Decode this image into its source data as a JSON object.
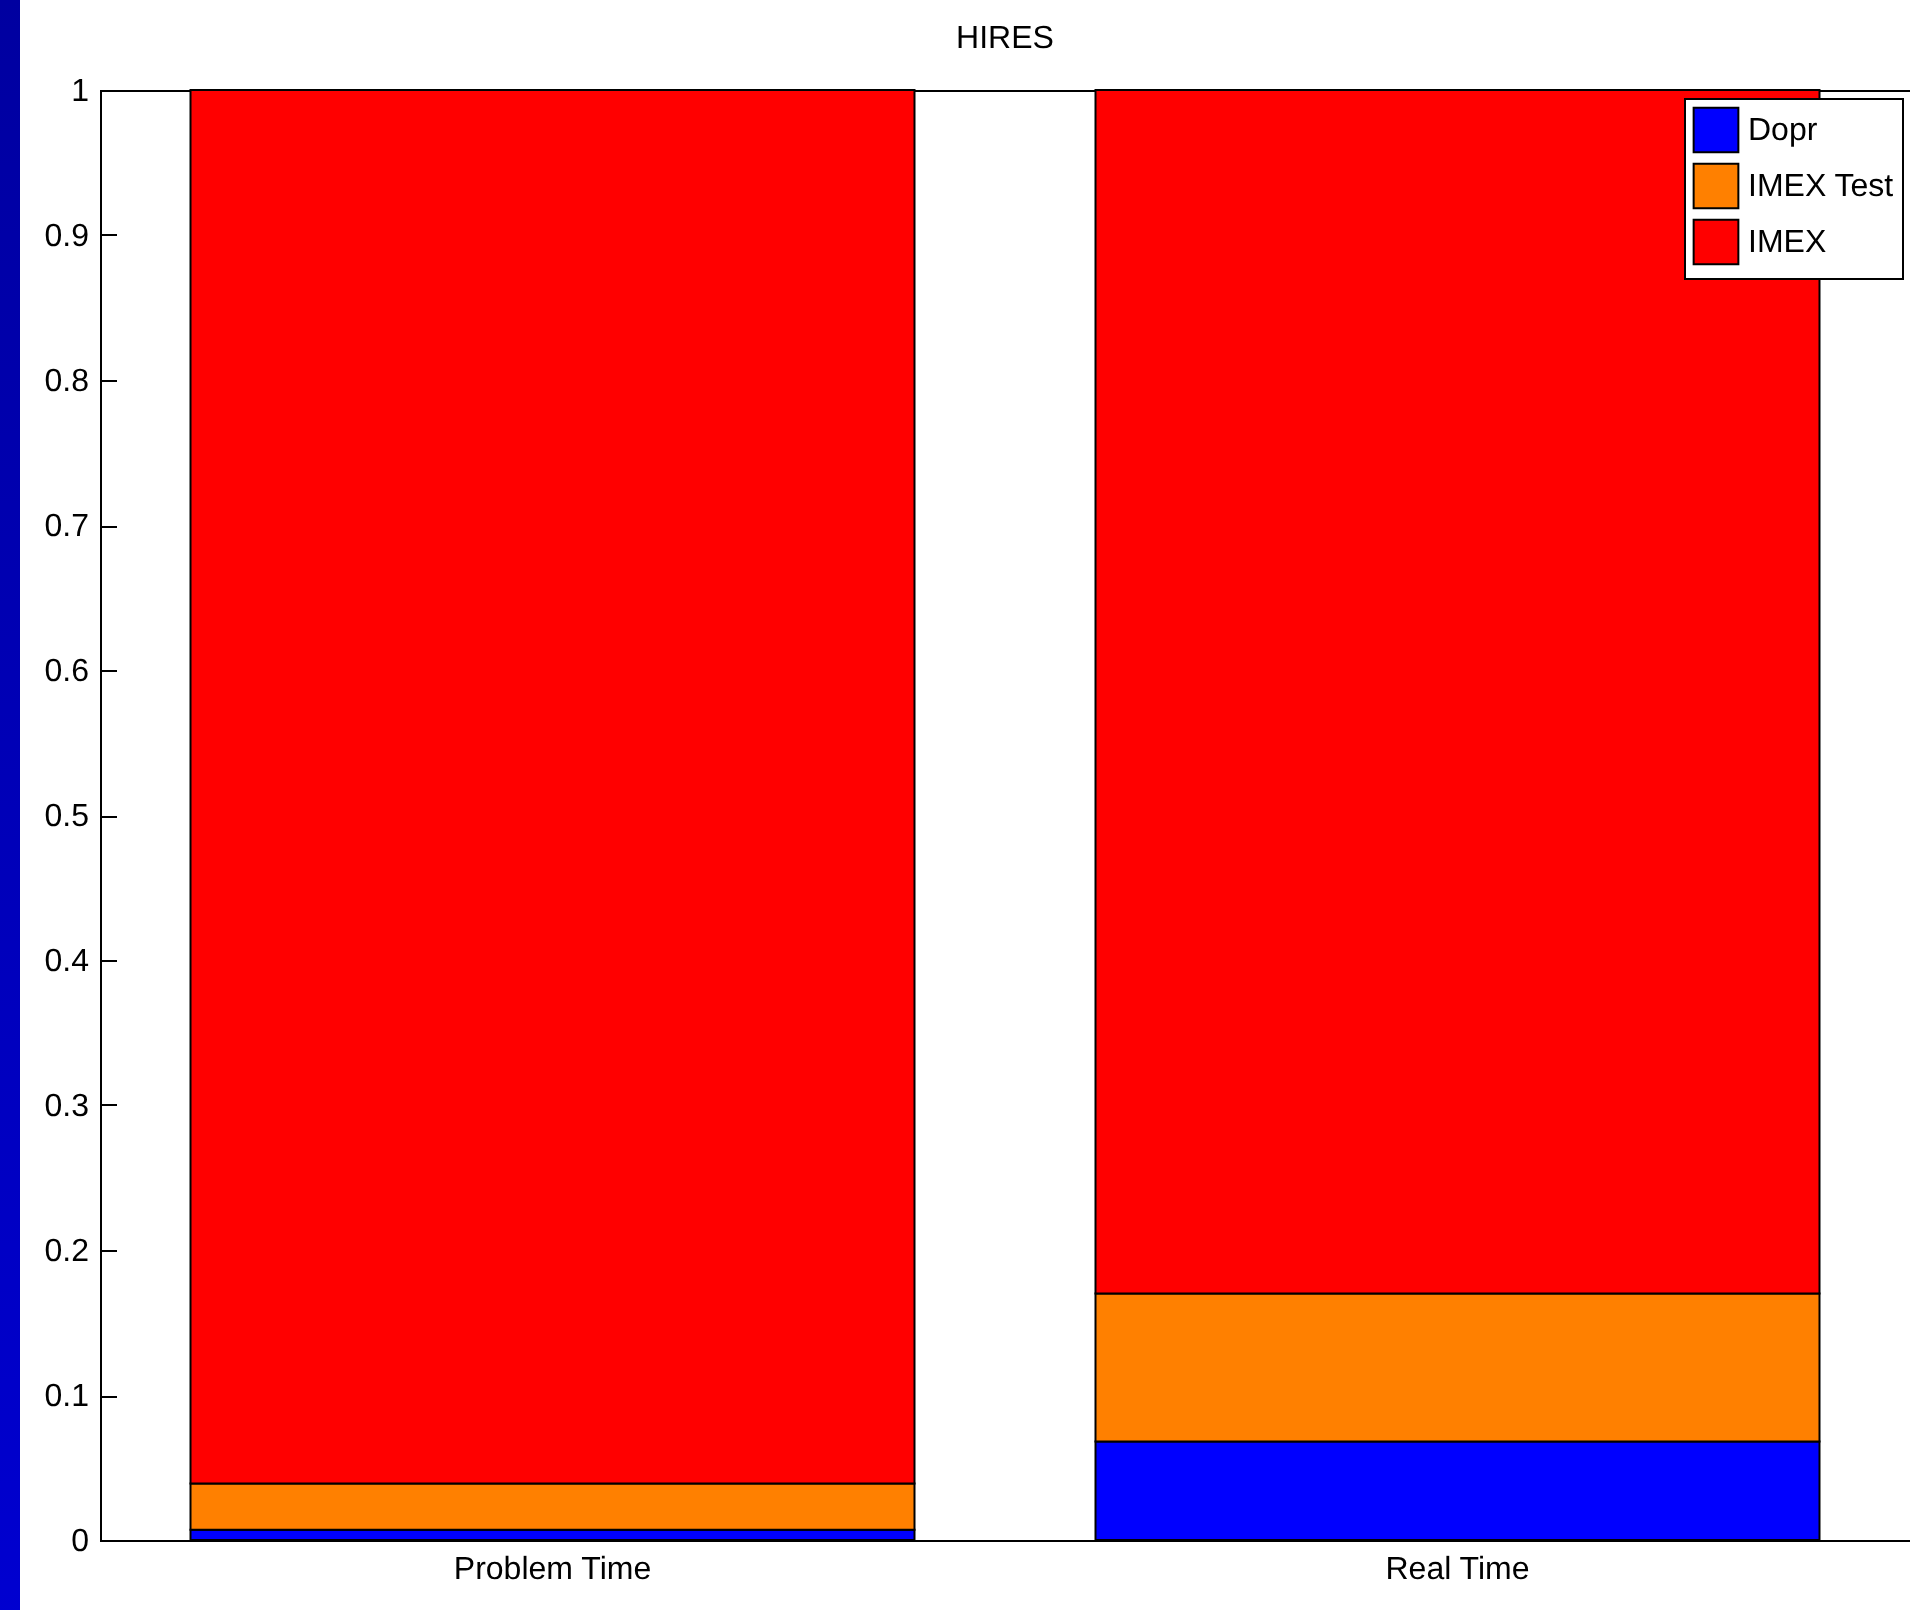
{
  "chart_data": {
    "type": "bar",
    "title": "HIRES",
    "stacked": true,
    "categories": [
      "Problem Time",
      "Real Time"
    ],
    "series": [
      {
        "name": "Dopr",
        "color": "#0000ff",
        "values": [
          0.007,
          0.068
        ]
      },
      {
        "name": "IMEX Test",
        "color": "#ff8000",
        "values": [
          0.032,
          0.102
        ]
      },
      {
        "name": "IMEX",
        "color": "#ff0000",
        "values": [
          0.961,
          0.83
        ]
      }
    ],
    "ylim": [
      0,
      1
    ],
    "yticks": [
      0,
      0.1,
      0.2,
      0.3,
      0.4,
      0.5,
      0.6,
      0.7,
      0.8,
      0.9,
      1
    ],
    "legend": "top right"
  }
}
